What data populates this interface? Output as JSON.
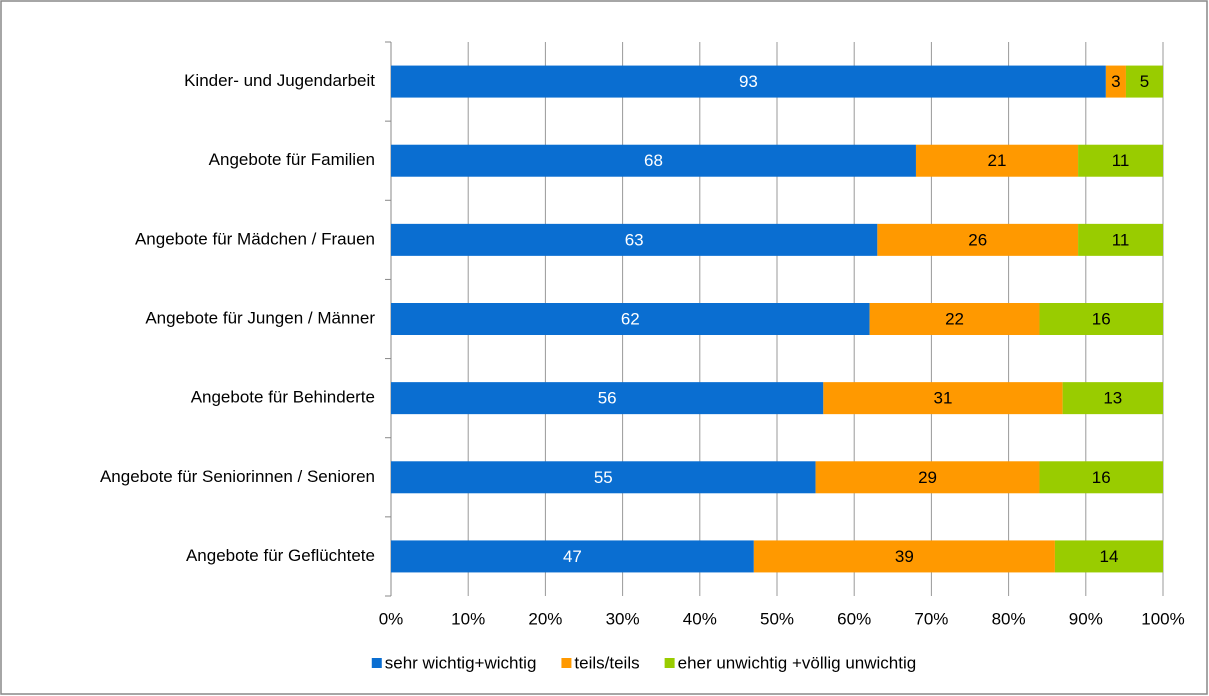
{
  "chart_data": {
    "type": "bar",
    "orientation": "horizontal",
    "stacked": true,
    "categories": [
      "Kinder- und Jugendarbeit",
      "Angebote für Familien",
      "Angebote für Mädchen / Frauen",
      "Angebote für Jungen / Männer",
      "Angebote für Behinderte",
      "Angebote für Seniorinnen / Senioren",
      "Angebote für Geflüchtete"
    ],
    "series": [
      {
        "name": "sehr wichtig+wichtig",
        "color": "#0a6ed1",
        "label_color": "#ffffff",
        "values": [
          92.6,
          68,
          63,
          62,
          56,
          55,
          47
        ],
        "value_labels": [
          "93",
          "68",
          "63",
          "62",
          "56",
          "55",
          "47"
        ]
      },
      {
        "name": "teils/teils",
        "color": "#ff9900",
        "label_color": "#000000",
        "values": [
          2.6,
          21,
          26,
          22,
          31,
          29,
          39
        ],
        "value_labels": [
          "3",
          "21",
          "26",
          "22",
          "31",
          "29",
          "39"
        ]
      },
      {
        "name": "eher unwichtig +völlig unwichtig",
        "color": "#99cc00",
        "label_color": "#000000",
        "values": [
          4.8,
          11,
          11,
          16,
          13,
          16,
          14
        ],
        "value_labels": [
          "5",
          "11",
          "11",
          "16",
          "13",
          "16",
          "14"
        ]
      }
    ],
    "xlim": [
      0,
      100
    ],
    "xticks": [
      {
        "value": 0,
        "label": "0%"
      },
      {
        "value": 10,
        "label": "10%"
      },
      {
        "value": 20,
        "label": "20%"
      },
      {
        "value": 30,
        "label": "30%"
      },
      {
        "value": 40,
        "label": "40%"
      },
      {
        "value": 50,
        "label": "50%"
      },
      {
        "value": 60,
        "label": "60%"
      },
      {
        "value": 70,
        "label": "70%"
      },
      {
        "value": 80,
        "label": "80%"
      },
      {
        "value": 90,
        "label": "90%"
      },
      {
        "value": 100,
        "label": "100%"
      }
    ],
    "grid": true,
    "legend": "bottom"
  }
}
